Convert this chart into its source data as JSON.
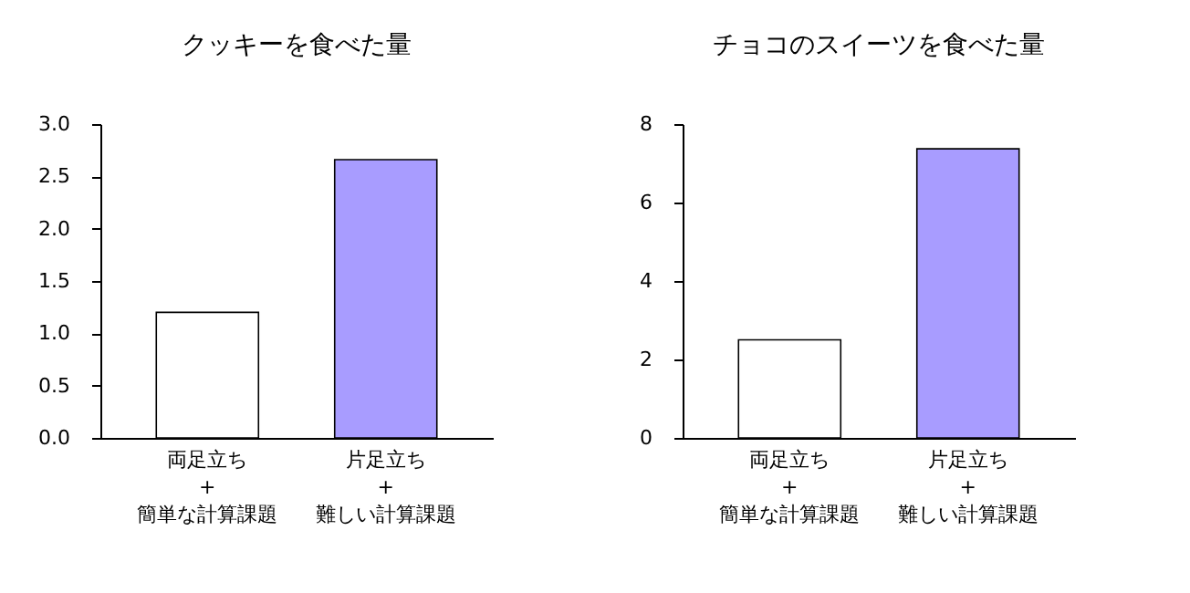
{
  "chart_data": [
    {
      "type": "bar",
      "title": "クッキーを食べた量",
      "categories": [
        "両足立ち\n+\n簡単な計算課題",
        "片足立ち\n+\n難しい計算課題"
      ],
      "values": [
        1.2,
        2.66
      ],
      "colors": [
        "#ffffff",
        "#a89cff"
      ],
      "ylim": [
        0,
        3
      ],
      "yticks": [
        {
          "value": 0,
          "label": "0.0"
        },
        {
          "value": 0.5,
          "label": "0.5"
        },
        {
          "value": 1,
          "label": "1.0"
        },
        {
          "value": 1.5,
          "label": "1.5"
        },
        {
          "value": 2,
          "label": "2.0"
        },
        {
          "value": 2.5,
          "label": "2.5"
        },
        {
          "value": 3,
          "label": "3.0"
        }
      ],
      "grid": false
    },
    {
      "type": "bar",
      "title": "チョコのスイーツを食べた量",
      "categories": [
        "両足立ち\n+\n簡単な計算課題",
        "片足立ち\n+\n難しい計算課題"
      ],
      "values": [
        2.5,
        7.37
      ],
      "colors": [
        "#ffffff",
        "#a89cff"
      ],
      "ylim": [
        0,
        8
      ],
      "yticks": [
        0,
        2,
        4,
        6,
        8
      ],
      "grid": false
    }
  ]
}
